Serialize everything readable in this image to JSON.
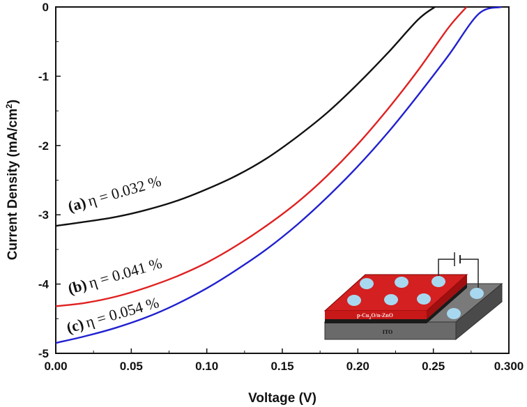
{
  "chart_data": {
    "type": "line",
    "title": "",
    "xlabel": "Voltage (V)",
    "ylabel_main": "Current Density (mA/cm",
    "ylabel_sup": "2",
    "ylabel_close": ")",
    "xlim": [
      0.0,
      0.3
    ],
    "ylim": [
      -5,
      0
    ],
    "xticks": [
      0.0,
      0.05,
      0.1,
      0.15,
      0.2,
      0.25,
      0.3
    ],
    "xtick_labels": [
      "0.00",
      "0.05",
      "0.10",
      "0.15",
      "0.20",
      "0.25",
      "0.300"
    ],
    "yticks": [
      0,
      -1,
      -2,
      -3,
      -4,
      -5
    ],
    "ytick_labels": [
      "0",
      "-1",
      "-2",
      "-3",
      "-4",
      "-5"
    ],
    "grid": false,
    "series": [
      {
        "name": "(a)",
        "color": "#111111",
        "efficiency_label": "η = 0.032 %",
        "x": [
          0.0,
          0.02,
          0.04,
          0.06,
          0.08,
          0.1,
          0.12,
          0.14,
          0.16,
          0.18,
          0.2,
          0.22,
          0.24,
          0.251
        ],
        "y": [
          -3.16,
          -3.1,
          -3.03,
          -2.93,
          -2.8,
          -2.63,
          -2.43,
          -2.18,
          -1.87,
          -1.52,
          -1.11,
          -0.66,
          -0.18,
          0.0
        ]
      },
      {
        "name": "(b)",
        "color": "#e02020",
        "efficiency_label": "η = 0.041 %",
        "x": [
          0.0,
          0.02,
          0.04,
          0.06,
          0.08,
          0.1,
          0.12,
          0.14,
          0.16,
          0.18,
          0.2,
          0.22,
          0.24,
          0.26,
          0.272
        ],
        "y": [
          -4.32,
          -4.27,
          -4.18,
          -4.05,
          -3.89,
          -3.69,
          -3.44,
          -3.15,
          -2.82,
          -2.43,
          -1.98,
          -1.47,
          -0.91,
          -0.3,
          0.0
        ]
      },
      {
        "name": "(c)",
        "color": "#2020d0",
        "efficiency_label": "η = 0.054 %",
        "x": [
          0.0,
          0.02,
          0.04,
          0.06,
          0.08,
          0.1,
          0.12,
          0.14,
          0.16,
          0.18,
          0.2,
          0.22,
          0.24,
          0.26,
          0.28,
          0.295
        ],
        "y": [
          -4.85,
          -4.75,
          -4.63,
          -4.48,
          -4.29,
          -4.06,
          -3.79,
          -3.49,
          -3.14,
          -2.74,
          -2.3,
          -1.81,
          -1.27,
          -0.7,
          -0.1,
          0.0
        ]
      }
    ],
    "inset": {
      "top_layer_label": "p-Cu",
      "top_layer_sub": "2",
      "top_layer_rest": "O/n-ZnO",
      "substrate_label": "ITO",
      "colors": {
        "top_layer": "#d42020",
        "dots": "#a8d8f0",
        "substrate": "#6a6a6a",
        "dark_layer": "#1a1a1a"
      }
    }
  }
}
